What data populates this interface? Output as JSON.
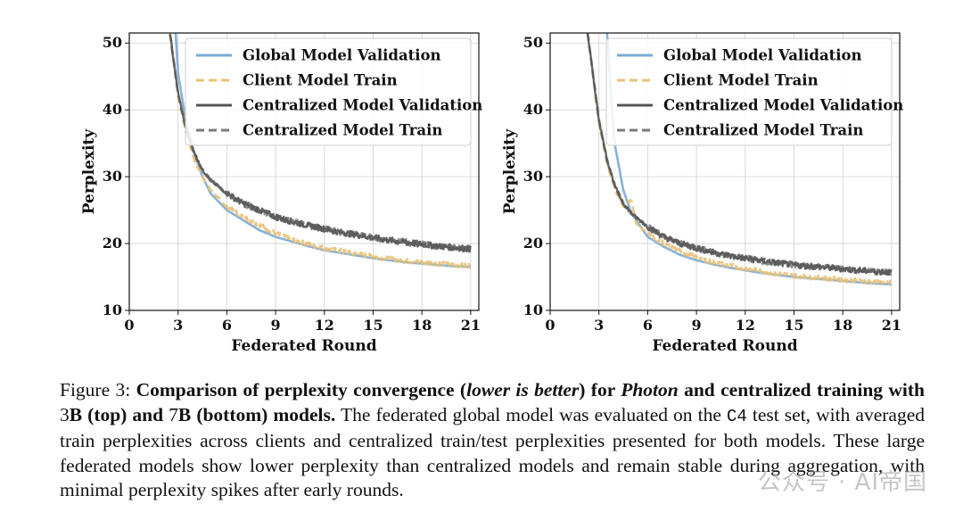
{
  "colors": {
    "global_val": "#7aaad6",
    "client_train": "#e8c177",
    "central_val": "#555555",
    "central_train": "#7a7a7a"
  },
  "chart_data": [
    {
      "type": "line",
      "panel": "left",
      "xlabel": "Federated Round",
      "ylabel": "Perplexity",
      "xlim": [
        0,
        21.5
      ],
      "ylim": [
        10,
        51.5
      ],
      "xticks": [
        0,
        3,
        6,
        9,
        12,
        15,
        18,
        21
      ],
      "yticks": [
        10,
        20,
        30,
        40,
        50
      ],
      "grid": true,
      "legend_position": "top-right",
      "series": [
        {
          "name": "Global Model Validation",
          "style": "solid",
          "color": "#7aaad6",
          "x": [
            2.85,
            3.0,
            3.5,
            4.0,
            4.5,
            5.0,
            6.0,
            7.0,
            8.0,
            9.0,
            10.0,
            11.0,
            12.0,
            13.0,
            14.0,
            15.0,
            16.0,
            17.0,
            18.0,
            19.0,
            20.0,
            21.0
          ],
          "y": [
            51.5,
            45.5,
            38.0,
            33.5,
            30.0,
            27.5,
            25.0,
            23.5,
            22.0,
            21.0,
            20.3,
            19.6,
            19.0,
            18.6,
            18.2,
            17.8,
            17.5,
            17.2,
            17.0,
            16.8,
            16.6,
            16.5
          ]
        },
        {
          "name": "Client Model Train",
          "style": "dashed",
          "color": "#e8c177",
          "x": [
            2.5,
            3.0,
            3.5,
            4.0,
            4.5,
            5.0,
            6.0,
            7.0,
            8.0,
            9.0,
            10.0,
            11.0,
            12.0,
            13.0,
            14.0,
            15.0,
            16.0,
            17.0,
            18.0,
            19.0,
            20.0,
            21.0
          ],
          "y": [
            51.5,
            42.0,
            36.5,
            32.5,
            30.0,
            28.0,
            25.5,
            24.0,
            22.8,
            21.5,
            20.6,
            19.9,
            19.3,
            18.9,
            18.4,
            18.1,
            17.7,
            17.4,
            17.2,
            17.0,
            16.8,
            16.7
          ]
        },
        {
          "name": "Centralized Model Validation",
          "style": "solid",
          "color": "#555555",
          "x": [
            2.5,
            3.0,
            3.5,
            4.0,
            4.5,
            5.0,
            6.0,
            7.0,
            8.0,
            9.0,
            10.0,
            11.0,
            12.0,
            13.0,
            14.0,
            15.0,
            16.0,
            17.0,
            18.0,
            19.0,
            20.0,
            21.0
          ],
          "y": [
            51.5,
            42.5,
            37.0,
            33.5,
            31.0,
            29.5,
            27.5,
            26.0,
            25.0,
            24.0,
            23.3,
            22.7,
            22.2,
            21.7,
            21.3,
            20.9,
            20.5,
            20.2,
            19.9,
            19.6,
            19.4,
            19.2
          ]
        },
        {
          "name": "Centralized Model Train",
          "style": "dashed",
          "color": "#7a7a7a",
          "x": [
            2.5,
            3.0,
            3.5,
            4.0,
            4.5,
            5.0,
            6.0,
            7.0,
            8.0,
            9.0,
            10.0,
            11.0,
            12.0,
            13.0,
            14.0,
            15.0,
            16.0,
            17.0,
            18.0,
            19.0,
            20.0,
            21.0
          ],
          "y": [
            51.5,
            42.5,
            37.0,
            33.5,
            31.0,
            29.5,
            27.5,
            26.0,
            25.0,
            24.0,
            23.3,
            22.7,
            22.2,
            21.7,
            21.3,
            20.9,
            20.5,
            20.2,
            19.9,
            19.6,
            19.4,
            19.2
          ]
        }
      ]
    },
    {
      "type": "line",
      "panel": "right",
      "xlabel": "Federated Round",
      "ylabel": "Perplexity",
      "xlim": [
        0,
        21.5
      ],
      "ylim": [
        10,
        51.5
      ],
      "xticks": [
        0,
        3,
        6,
        9,
        12,
        15,
        18,
        21
      ],
      "yticks": [
        10,
        20,
        30,
        40,
        50
      ],
      "grid": true,
      "legend_position": "top-right",
      "series": [
        {
          "name": "Global Model Validation",
          "style": "solid",
          "color": "#7aaad6",
          "x": [
            3.5,
            3.8,
            4.0,
            4.5,
            5.0,
            6.0,
            7.0,
            8.0,
            9.0,
            10.0,
            11.0,
            12.0,
            13.0,
            14.0,
            15.0,
            16.0,
            17.0,
            18.0,
            19.0,
            20.0,
            21.0
          ],
          "y": [
            51.5,
            40.0,
            34.5,
            28.0,
            24.5,
            21.0,
            19.5,
            18.3,
            17.5,
            16.9,
            16.4,
            16.0,
            15.6,
            15.3,
            15.0,
            14.8,
            14.6,
            14.4,
            14.2,
            14.0,
            13.9
          ]
        },
        {
          "name": "Client Model Train",
          "style": "dashed",
          "color": "#e8c177",
          "x": [
            2.3,
            3.0,
            3.5,
            4.0,
            4.5,
            5.0,
            5.3,
            6.0,
            7.0,
            8.0,
            9.0,
            10.0,
            11.0,
            12.0,
            13.0,
            14.0,
            15.0,
            16.0,
            17.0,
            18.0,
            19.0,
            20.0,
            21.0
          ],
          "y": [
            51.5,
            38.0,
            32.0,
            28.0,
            25.5,
            26.5,
            23.0,
            21.5,
            20.0,
            18.8,
            17.9,
            17.2,
            16.7,
            16.3,
            15.9,
            15.5,
            15.2,
            15.0,
            14.8,
            14.6,
            14.4,
            14.2,
            14.1
          ]
        },
        {
          "name": "Centralized Model Validation",
          "style": "solid",
          "color": "#555555",
          "x": [
            2.3,
            3.0,
            3.5,
            4.0,
            4.5,
            5.0,
            6.0,
            7.0,
            8.0,
            9.0,
            10.0,
            11.0,
            12.0,
            13.0,
            14.0,
            15.0,
            16.0,
            17.0,
            18.0,
            19.0,
            20.0,
            21.0
          ],
          "y": [
            51.5,
            38.5,
            32.5,
            28.5,
            26.0,
            24.5,
            22.5,
            21.0,
            20.0,
            19.3,
            18.7,
            18.2,
            17.8,
            17.4,
            17.1,
            16.8,
            16.6,
            16.4,
            16.2,
            16.0,
            15.8,
            15.7
          ]
        },
        {
          "name": "Centralized Model Train",
          "style": "dashed",
          "color": "#7a7a7a",
          "x": [
            2.3,
            3.0,
            3.5,
            4.0,
            4.5,
            5.0,
            6.0,
            7.0,
            8.0,
            9.0,
            10.0,
            11.0,
            12.0,
            13.0,
            14.0,
            15.0,
            16.0,
            17.0,
            18.0,
            19.0,
            20.0,
            21.0
          ],
          "y": [
            51.5,
            38.5,
            32.5,
            28.5,
            26.0,
            24.5,
            22.5,
            21.0,
            20.0,
            19.3,
            18.7,
            18.2,
            17.8,
            17.4,
            17.1,
            16.8,
            16.6,
            16.4,
            16.2,
            16.0,
            15.8,
            15.7
          ]
        }
      ]
    }
  ],
  "caption": {
    "figure_label": "Figure 3: ",
    "bold_part1": "Comparison of perplexity convergence (",
    "bold_italic1": "lower is better",
    "bold_part2": ") for ",
    "bold_italic2": "Photon",
    "bold_part3": " and centralized training with ",
    "bold_num_3b": "3",
    "bold_part4": "B (top) and ",
    "bold_num_7b": "7",
    "bold_part5": "B (bottom) models.",
    "text_part1": " The federated global model was evaluated on the ",
    "mono_c4": "C4",
    "text_part2": " test set, with averaged train perplexities across clients and centralized train/test perplexities presented for both models. These large federated models show lower perplexity than centralized models and remain stable during aggregation, with minimal perplexity spikes after early rounds."
  },
  "watermark": "公众号 · AI帝国"
}
